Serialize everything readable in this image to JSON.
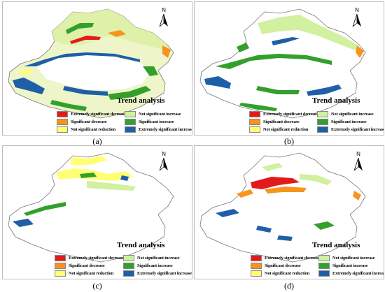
{
  "panels": [
    {
      "id": "a",
      "caption": "(a)",
      "north": "N",
      "legend_title": "Trend analysis"
    },
    {
      "id": "b",
      "caption": "(b)",
      "north": "N",
      "legend_title": "Trend analysis"
    },
    {
      "id": "c",
      "caption": "(c)",
      "north": "N",
      "legend_title": "Trend analysis"
    },
    {
      "id": "d",
      "caption": "(d)",
      "north": "N",
      "legend_title": "Trend analysis"
    }
  ],
  "legend": {
    "items": [
      {
        "label": "Extremely significant decrease",
        "color": "#e31a1c"
      },
      {
        "label": "Significant decrease",
        "color": "#f7941d"
      },
      {
        "label": "Not significant reduction",
        "color": "#ffff73"
      },
      {
        "label": "Not significant increase",
        "color": "#d1f0a0"
      },
      {
        "label": "Significant increase",
        "color": "#33a02c"
      },
      {
        "label": "Extremely significant increase",
        "color": "#1f5fa8"
      }
    ]
  }
}
